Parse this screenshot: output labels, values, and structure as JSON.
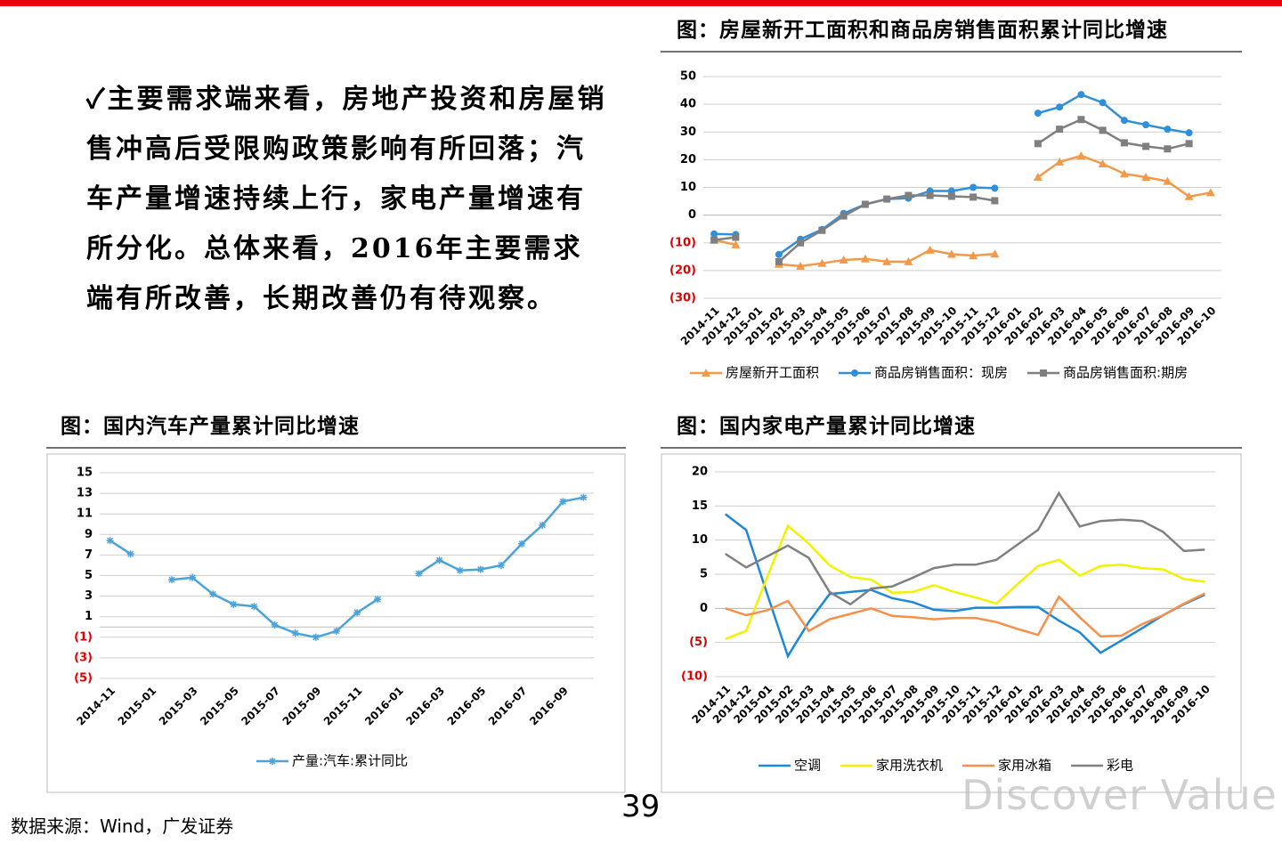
{
  "text": {
    "bullet": "✓主要需求端来看，房地产投资和房屋销售冲高后受限购政策影响有所回落；汽车产量增速持续上行，家电产量增速有所分化。总体来看，2016年主要需求端有所改善，长期改善仍有待观察。",
    "source": "数据来源：Wind，广发证券",
    "page_number": "39",
    "watermark": "Discover Value"
  },
  "chart_data": [
    {
      "type": "line",
      "title": "图：房屋新开工面积和商品房销售面积累计同比增速",
      "categories": [
        "2014-11",
        "2014-12",
        "2015-01",
        "2015-02",
        "2015-03",
        "2015-04",
        "2015-05",
        "2015-06",
        "2015-07",
        "2015-08",
        "2015-09",
        "2015-10",
        "2015-11",
        "2015-12",
        "2016-01",
        "2016-02",
        "2016-03",
        "2016-04",
        "2016-05",
        "2016-06",
        "2016-07",
        "2016-08",
        "2016-09",
        "2016-10"
      ],
      "ylim": [
        -30,
        50
      ],
      "yticks": [
        {
          "value": -30,
          "label": "(30)"
        },
        {
          "value": -20,
          "label": "(20)"
        },
        {
          "value": -10,
          "label": "(10)"
        },
        0,
        10,
        20,
        30,
        40,
        50
      ],
      "grid": true,
      "series": [
        {
          "name": "房屋新开工面积",
          "color": "#f39a4a",
          "marker": "triangle",
          "values": [
            -9,
            -10.7,
            null,
            -17.7,
            -18.4,
            -17.4,
            -16.2,
            -15.8,
            -16.8,
            -16.8,
            -12.6,
            -14.1,
            -14.6,
            -14,
            null,
            13.7,
            19.2,
            21.4,
            18.5,
            14.9,
            13.7,
            12.2,
            6.7,
            8.1
          ]
        },
        {
          "name": "商品房销售面积：现房",
          "color": "#2f8fd8",
          "marker": "circle",
          "values": [
            -6.8,
            -7,
            null,
            -14.2,
            -8.7,
            -5.2,
            0.6,
            3.9,
            5.8,
            6.1,
            8.7,
            8.7,
            10,
            9.7,
            null,
            36.8,
            39,
            43.5,
            40.6,
            34.2,
            32.6,
            31,
            29.7,
            null
          ]
        },
        {
          "name": "商品房销售面积:期房",
          "color": "#7f7f7f",
          "marker": "square",
          "values": [
            -9,
            -8,
            null,
            -16.8,
            -10,
            -5.5,
            -0.3,
            3.9,
            5.8,
            7.1,
            7.1,
            6.8,
            6.5,
            5.2,
            null,
            25.8,
            31,
            34.5,
            30.6,
            26.1,
            24.8,
            23.9,
            25.8,
            null
          ]
        }
      ]
    },
    {
      "type": "line",
      "title": "图：国内汽车产量累计同比增速",
      "categories": [
        "2014-11",
        null,
        "2015-01",
        null,
        "2015-03",
        null,
        "2015-05",
        null,
        "2015-07",
        null,
        "2015-09",
        null,
        "2015-11",
        null,
        "2016-01",
        null,
        "2016-03",
        null,
        "2016-05",
        null,
        "2016-07",
        null,
        "2016-09",
        null
      ],
      "ylim": [
        -5,
        15
      ],
      "yticks": [
        {
          "value": -5,
          "label": "(5)"
        },
        {
          "value": -3,
          "label": "(3)"
        },
        {
          "value": -1,
          "label": "(1)"
        },
        1,
        3,
        5,
        7,
        9,
        11,
        13,
        15
      ],
      "grid": true,
      "series": [
        {
          "name": "产量:汽车:累计同比",
          "color": "#4ba3d9",
          "marker": "asterisk",
          "values": [
            8.4,
            7.1,
            null,
            4.6,
            4.8,
            3.2,
            2.2,
            2.0,
            0.2,
            -0.6,
            -1.0,
            -0.4,
            1.4,
            2.7,
            null,
            5.2,
            6.5,
            5.5,
            5.6,
            6.0,
            8.1,
            9.9,
            12.2,
            12.6
          ]
        }
      ]
    },
    {
      "type": "line",
      "title": "图：国内家电产量累计同比增速",
      "categories": [
        "2014-11",
        "2014-12",
        "2015-01",
        "2015-02",
        "2015-03",
        "2015-04",
        "2015-05",
        "2015-06",
        "2015-07",
        "2015-08",
        "2015-09",
        "2015-10",
        "2015-11",
        "2015-12",
        "2016-01",
        "2016-02",
        "2016-03",
        "2016-04",
        "2016-05",
        "2016-06",
        "2016-07",
        "2016-08",
        "2016-09",
        "2016-10"
      ],
      "ylim": [
        -10,
        20
      ],
      "yticks": [
        {
          "value": -10,
          "label": "(10)"
        },
        {
          "value": -5,
          "label": "(5)"
        },
        0,
        5,
        10,
        15,
        20
      ],
      "grid": true,
      "series": [
        {
          "name": "空调",
          "color": "#1e88d8",
          "values": [
            13.8,
            11.5,
            2.2,
            -7.0,
            -2.0,
            2.1,
            2.4,
            2.7,
            1.5,
            0.9,
            -0.2,
            -0.4,
            0.1,
            0.1,
            0.2,
            0.2,
            -1.8,
            -3.5,
            -6.5,
            -4.7,
            -2.9,
            -1.0,
            0.6,
            2.0
          ]
        },
        {
          "name": "家用洗衣机",
          "color": "#f2f200",
          "values": [
            -4.5,
            -3.3,
            4.5,
            12.1,
            9.5,
            6.3,
            4.6,
            4.2,
            2.3,
            2.4,
            3.4,
            2.4,
            1.6,
            0.7,
            3.5,
            6.2,
            7.1,
            4.8,
            6.2,
            6.4,
            5.9,
            5.7,
            4.3,
            3.9
          ]
        },
        {
          "name": "家用冰箱",
          "color": "#f7904a",
          "values": [
            0,
            -1,
            -0.3,
            1.1,
            -3.3,
            -1.6,
            -0.8,
            0,
            -1.1,
            -1.3,
            -1.6,
            -1.4,
            -1.4,
            -2,
            -3,
            -3.9,
            1.7,
            -1.3,
            -4.1,
            -4,
            -2.3,
            -1,
            0.7,
            2.2
          ]
        },
        {
          "name": "彩电",
          "color": "#808080",
          "values": [
            8,
            6,
            7.6,
            9.2,
            7.4,
            2.4,
            0.6,
            2.9,
            3.2,
            4.5,
            5.9,
            6.4,
            6.4,
            7.1,
            9.3,
            11.5,
            16.9,
            12,
            12.8,
            13,
            12.8,
            11.2,
            8.4,
            8.6
          ]
        }
      ]
    }
  ]
}
